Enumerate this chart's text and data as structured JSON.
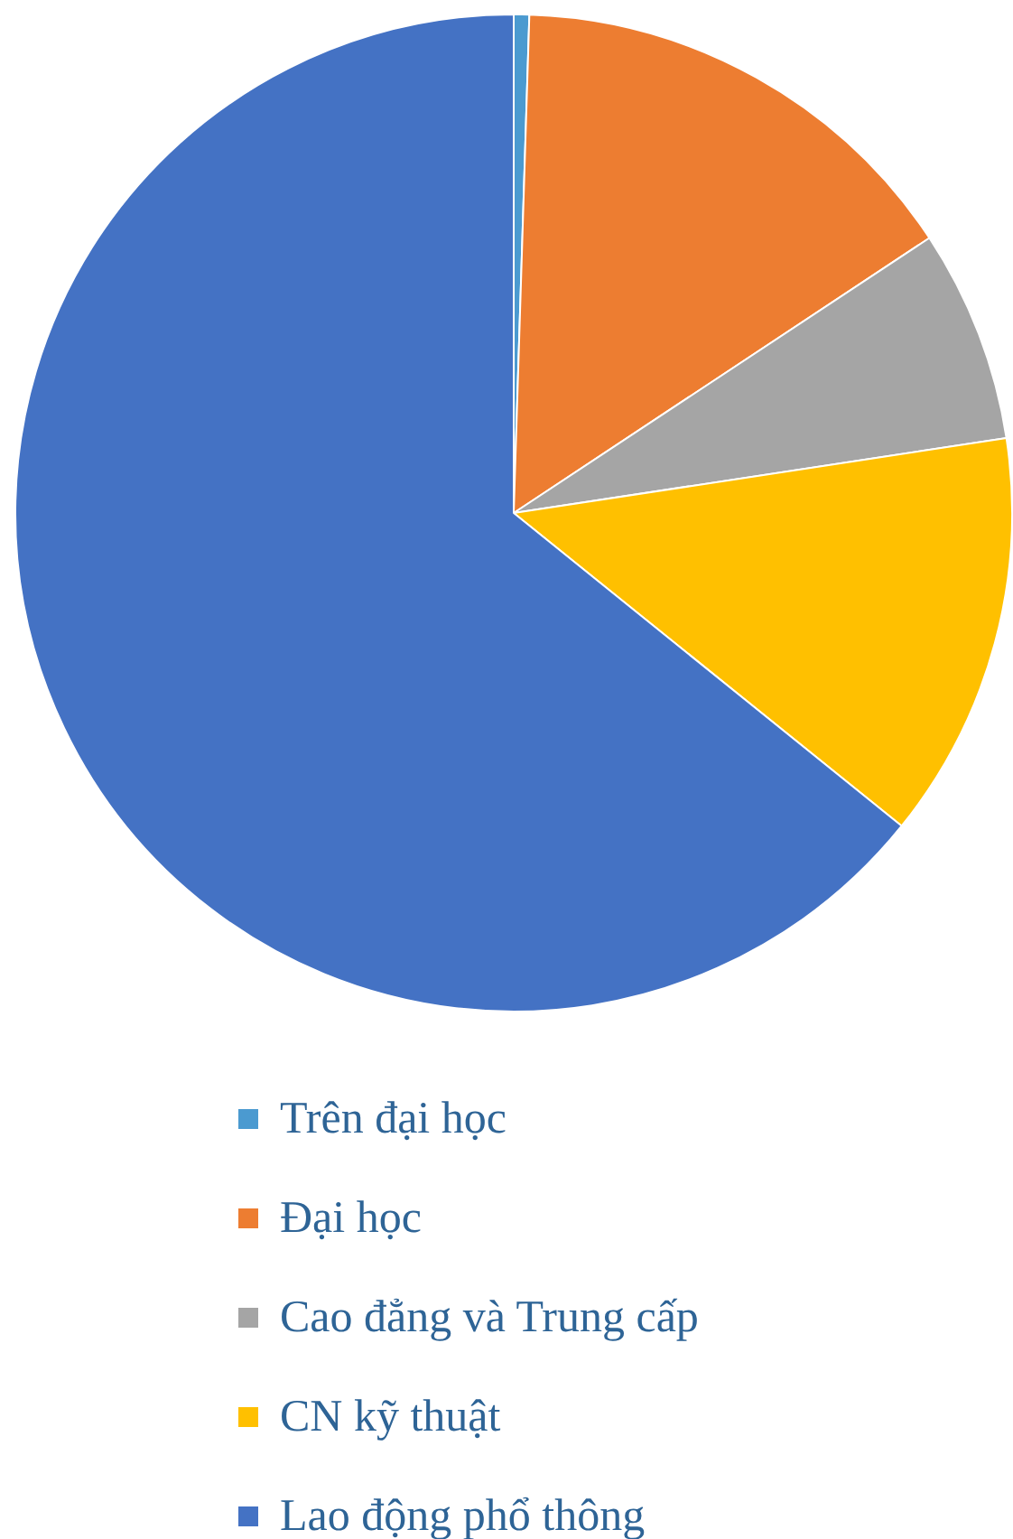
{
  "chart_data": {
    "type": "pie",
    "categories": [
      "Trên đại học",
      "Đại học",
      "Cao đẳng và Trung cấp",
      "CN kỹ thuật",
      "Lao động phổ thông"
    ],
    "values": [
      0.5,
      15.2,
      6.9,
      13.2,
      64.2
    ],
    "colors": [
      "#4b9ad0",
      "#ed7d31",
      "#a5a5a5",
      "#ffc000",
      "#4472c4"
    ],
    "legend": "bottom"
  }
}
